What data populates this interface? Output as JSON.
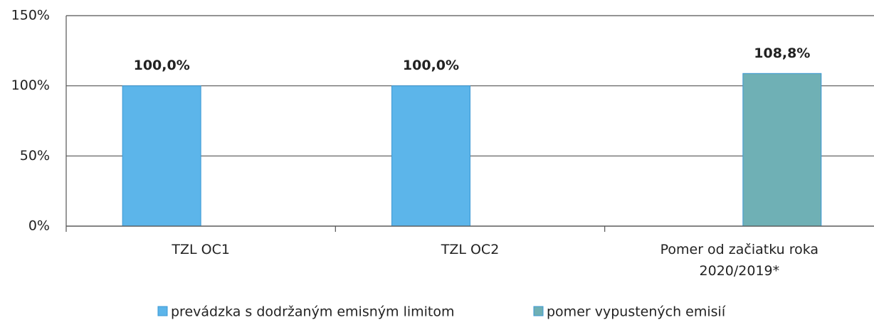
{
  "chart_data": {
    "type": "bar",
    "categories": [
      "TZL OC1",
      "TZL OC2",
      "Pomer  od začiatku roka\n2020/2019*"
    ],
    "series": [
      {
        "name": "prevádzka s dodržaným emisným limitom",
        "color": "#5cb5ea",
        "values": [
          100,
          100,
          null
        ],
        "value_labels": [
          "100,0%",
          "100,0%",
          null
        ]
      },
      {
        "name": "pomer vypustených emisií",
        "color": "#6fb0b5",
        "values": [
          null,
          null,
          108.8
        ],
        "value_labels": [
          null,
          null,
          "108,8%"
        ]
      }
    ],
    "ylim": [
      0,
      150
    ],
    "yticks": [
      {
        "value": 0,
        "label": "0%"
      },
      {
        "value": 50,
        "label": "50%"
      },
      {
        "value": 100,
        "label": "100%"
      },
      {
        "value": 150,
        "label": "150%"
      }
    ],
    "grid": true,
    "legend": "bottom"
  }
}
